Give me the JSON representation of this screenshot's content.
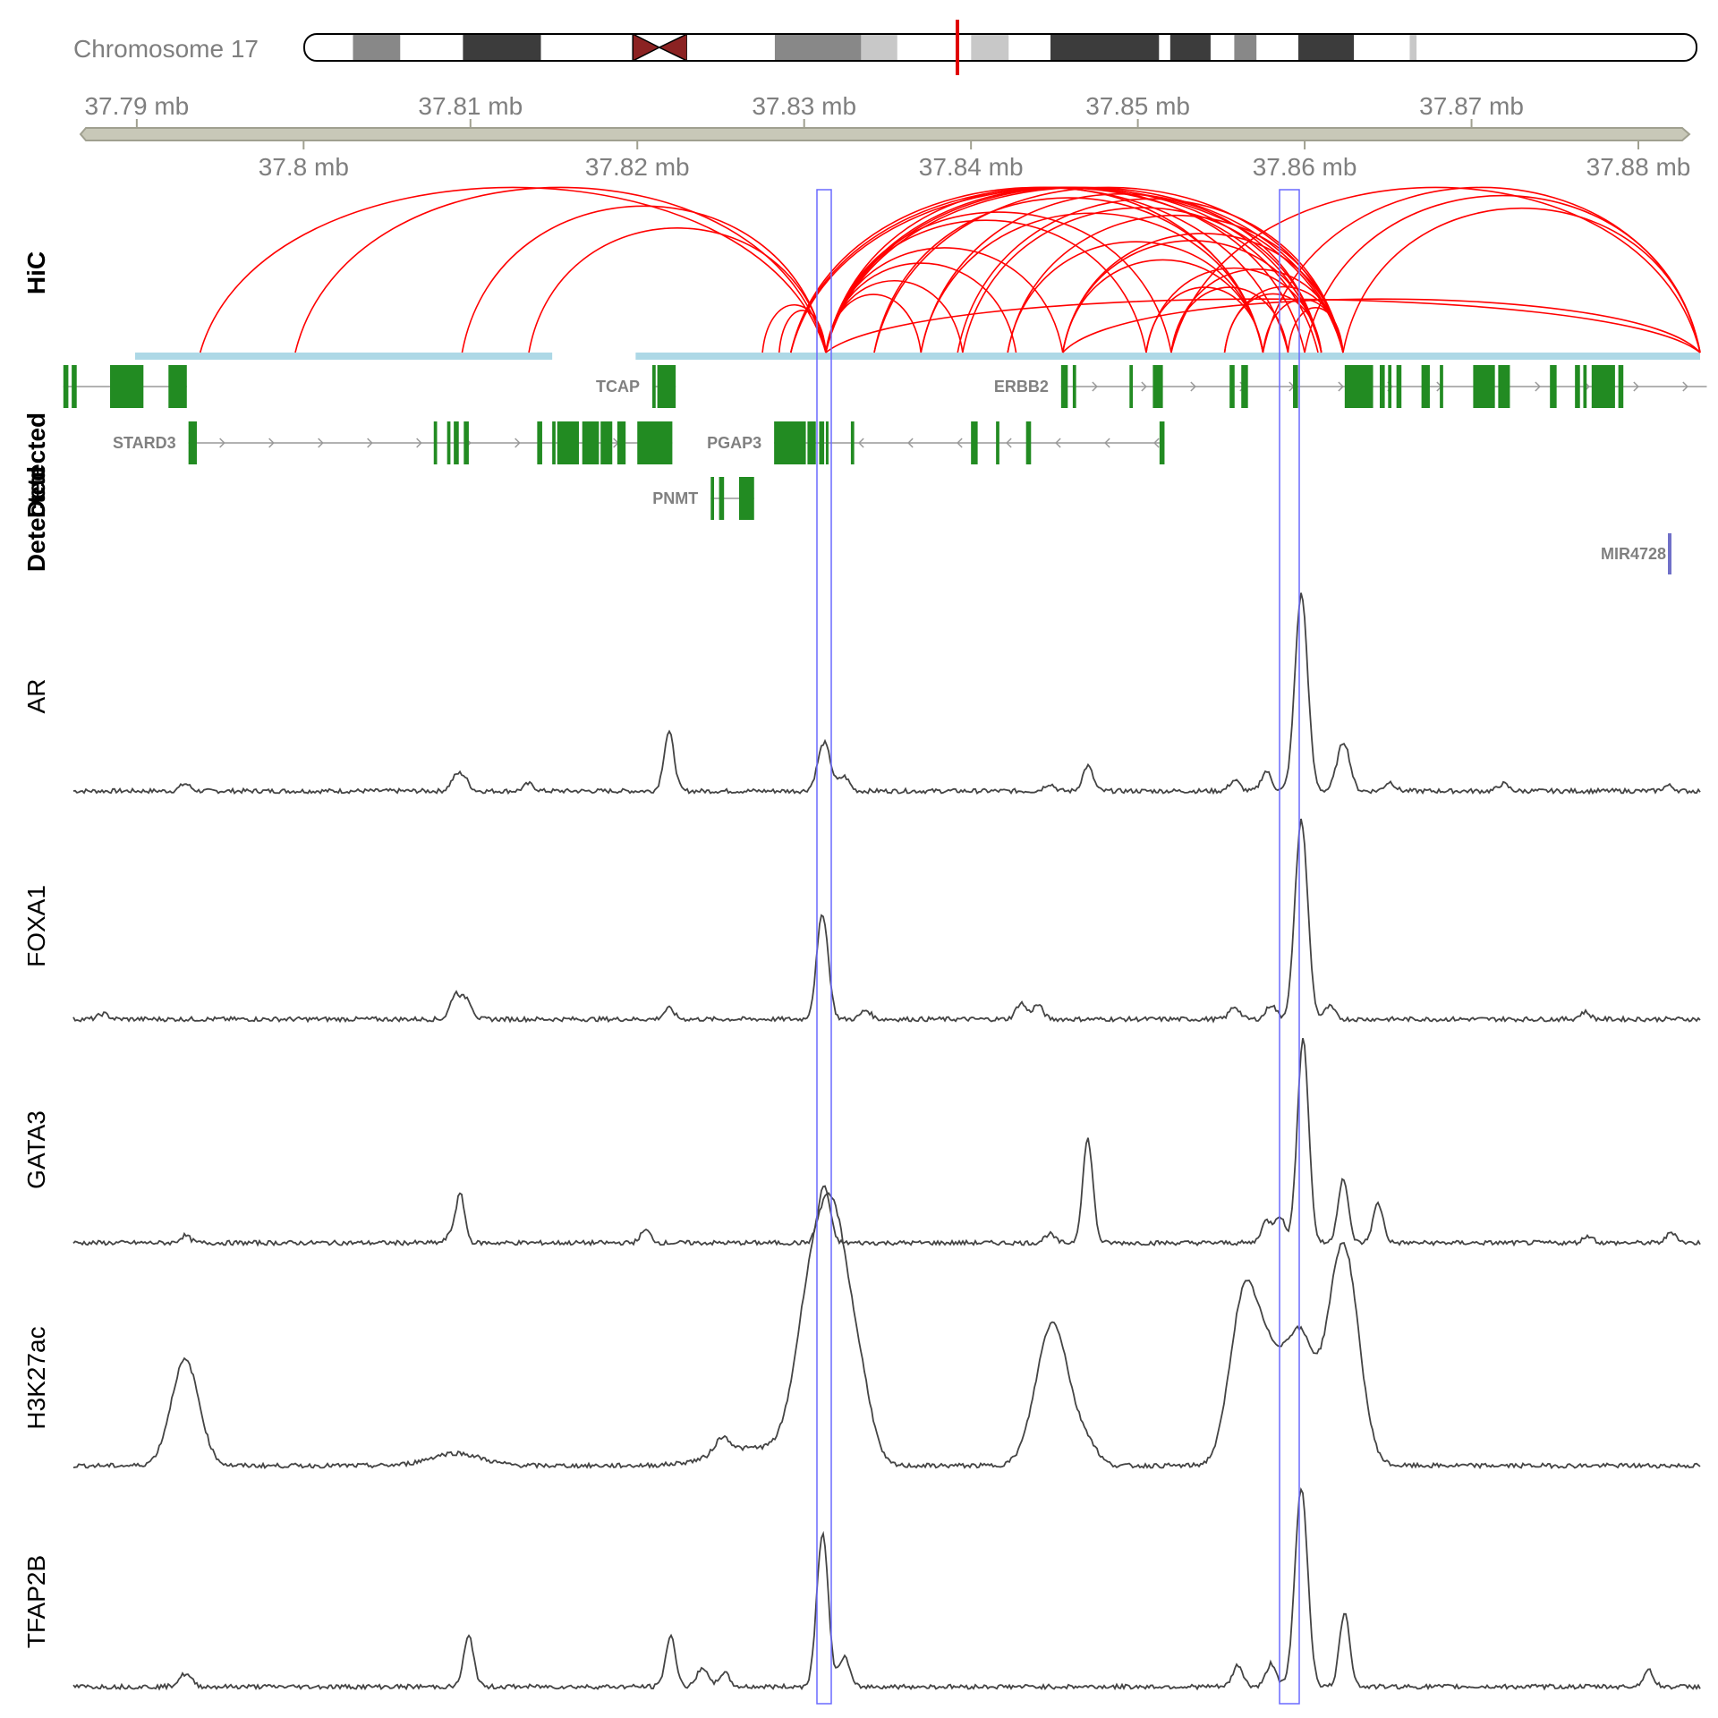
{
  "chromosome": {
    "label": "Chromosome 17",
    "bands": [
      {
        "from": 0.0,
        "to": 0.035,
        "color": "#ffffff"
      },
      {
        "from": 0.035,
        "to": 0.069,
        "color": "#888888"
      },
      {
        "from": 0.069,
        "to": 0.114,
        "color": "#ffffff"
      },
      {
        "from": 0.114,
        "to": 0.17,
        "color": "#3c3c3c"
      },
      {
        "from": 0.17,
        "to": 0.236,
        "color": "#ffffff"
      },
      {
        "from": 0.236,
        "to": 0.255,
        "color": "#8b2222",
        "kind": "centro-left"
      },
      {
        "from": 0.255,
        "to": 0.275,
        "color": "#8b2222",
        "kind": "centro-right"
      },
      {
        "from": 0.275,
        "to": 0.338,
        "color": "#ffffff"
      },
      {
        "from": 0.338,
        "to": 0.4,
        "color": "#888888"
      },
      {
        "from": 0.4,
        "to": 0.426,
        "color": "#c8c8c8"
      },
      {
        "from": 0.426,
        "to": 0.479,
        "color": "#ffffff"
      },
      {
        "from": 0.479,
        "to": 0.506,
        "color": "#c8c8c8"
      },
      {
        "from": 0.506,
        "to": 0.536,
        "color": "#ffffff"
      },
      {
        "from": 0.536,
        "to": 0.614,
        "color": "#3c3c3c"
      },
      {
        "from": 0.614,
        "to": 0.622,
        "color": "#ffffff"
      },
      {
        "from": 0.622,
        "to": 0.651,
        "color": "#3c3c3c"
      },
      {
        "from": 0.651,
        "to": 0.668,
        "color": "#ffffff"
      },
      {
        "from": 0.668,
        "to": 0.684,
        "color": "#888888"
      },
      {
        "from": 0.684,
        "to": 0.714,
        "color": "#ffffff"
      },
      {
        "from": 0.714,
        "to": 0.754,
        "color": "#3c3c3c"
      },
      {
        "from": 0.754,
        "to": 0.794,
        "color": "#ffffff"
      },
      {
        "from": 0.794,
        "to": 0.799,
        "color": "#c8c8c8"
      },
      {
        "from": 0.799,
        "to": 1.0,
        "color": "#ffffff"
      }
    ],
    "highlight_fraction": 0.4,
    "highlight_color": "#e00000"
  },
  "axis": {
    "range_mb": [
      37.7862,
      37.8837
    ],
    "top_ticks": [
      "37.79 mb",
      "37.81 mb",
      "37.83 mb",
      "37.85 mb",
      "37.87 mb"
    ],
    "top_tick_values": [
      37.79,
      37.81,
      37.83,
      37.85,
      37.87
    ],
    "bottom_ticks": [
      "37.8 mb",
      "37.82 mb",
      "37.84 mb",
      "37.86 mb",
      "37.88 mb"
    ],
    "bottom_tick_values": [
      37.8,
      37.82,
      37.84,
      37.86,
      37.88
    ]
  },
  "tracks": {
    "hic_title": "HiC",
    "detected_title_a": "Detected",
    "detected_title_b": "Detected",
    "signal_titles": [
      "AR",
      "FOXA1",
      "GATA3",
      "H3K27ac",
      "TFAP2B"
    ]
  },
  "highlights": [
    {
      "from_mb": 37.8306,
      "to_mb": 37.8314
    },
    {
      "from_mb": 37.8589,
      "to_mb": 37.86
    }
  ],
  "highlight_color": "#6a6aff",
  "hic": {
    "color": "#ff0000",
    "anchor_color": "#add8e6",
    "anchor_regions": [
      {
        "from_mb": 37.7899,
        "to_mb": 37.8149
      },
      {
        "from_mb": 37.8199,
        "to_mb": 37.8837
      }
    ]
  },
  "genes": {
    "color": "#228b22",
    "items": [
      {
        "name": "TCAP",
        "label": "TCAP",
        "row": 0,
        "start": 37.8209,
        "end": 37.8223,
        "strand": "+",
        "exons": [
          [
            37.8209,
            37.8211
          ],
          [
            37.8212,
            37.8223
          ]
        ]
      },
      {
        "name": "ERBB2",
        "label": "ERBB2",
        "row": 0,
        "start": 37.8454,
        "end": 37.8841,
        "strand": "+",
        "exons": [
          [
            37.8454,
            37.8458
          ],
          [
            37.8461,
            37.8463
          ],
          [
            37.8495,
            37.8497
          ],
          [
            37.8509,
            37.8515
          ],
          [
            37.8555,
            37.8558
          ],
          [
            37.8562,
            37.8566
          ],
          [
            37.8593,
            37.8596
          ],
          [
            37.8624,
            37.8641
          ],
          [
            37.8645,
            37.8648
          ],
          [
            37.865,
            37.8652
          ],
          [
            37.8655,
            37.8658
          ],
          [
            37.867,
            37.8675
          ],
          [
            37.8681,
            37.8683
          ],
          [
            37.8701,
            37.8714
          ],
          [
            37.8716,
            37.8723
          ],
          [
            37.8747,
            37.8751
          ],
          [
            37.8762,
            37.8765
          ],
          [
            37.8767,
            37.8769
          ],
          [
            37.8772,
            37.8786
          ],
          [
            37.8788,
            37.8791
          ]
        ]
      },
      {
        "name": "ERBB2-left",
        "label": "",
        "row": 0,
        "start": 37.7856,
        "end": 37.7896,
        "strand": "",
        "exons": [
          [
            37.7856,
            37.7859
          ],
          [
            37.7861,
            37.7864
          ],
          [
            37.7884,
            37.7904
          ],
          [
            37.7919,
            37.793
          ]
        ]
      },
      {
        "name": "STARD3",
        "label": "STARD3",
        "row": 1,
        "start": 37.7931,
        "end": 37.8203,
        "strand": "+",
        "exons": [
          [
            37.7931,
            37.7936
          ],
          [
            37.8078,
            37.808
          ],
          [
            37.8086,
            37.8088
          ],
          [
            37.809,
            37.8093
          ],
          [
            37.8096,
            37.8099
          ],
          [
            37.814,
            37.8143
          ],
          [
            37.8149,
            37.8151
          ],
          [
            37.8152,
            37.8165
          ],
          [
            37.8167,
            37.8177
          ],
          [
            37.8178,
            37.8185
          ],
          [
            37.8188,
            37.8193
          ],
          [
            37.82,
            37.8221
          ]
        ]
      },
      {
        "name": "PGAP3",
        "label": "PGAP3",
        "row": 1,
        "start": 37.8282,
        "end": 37.8471,
        "strand": "-",
        "exons": [
          [
            37.8282,
            37.8301
          ],
          [
            37.8302,
            37.8307
          ],
          [
            37.8309,
            37.8312
          ],
          [
            37.8313,
            37.8314
          ],
          [
            37.8328,
            37.833
          ],
          [
            37.84,
            37.8404
          ],
          [
            37.8415,
            37.8417
          ],
          [
            37.8433,
            37.8436
          ],
          [
            37.8513,
            37.8516
          ]
        ]
      },
      {
        "name": "PNMT",
        "label": "PNMT",
        "row": 2,
        "start": 37.8244,
        "end": 37.827,
        "strand": "",
        "exons": [
          [
            37.8244,
            37.8246
          ],
          [
            37.8249,
            37.8252
          ],
          [
            37.8261,
            37.827
          ]
        ]
      }
    ],
    "mirna": {
      "name": "MIR4728",
      "label": "MIR4728",
      "mb": 37.8828,
      "color": "#7070c8"
    }
  },
  "signal_color": "#444444"
}
